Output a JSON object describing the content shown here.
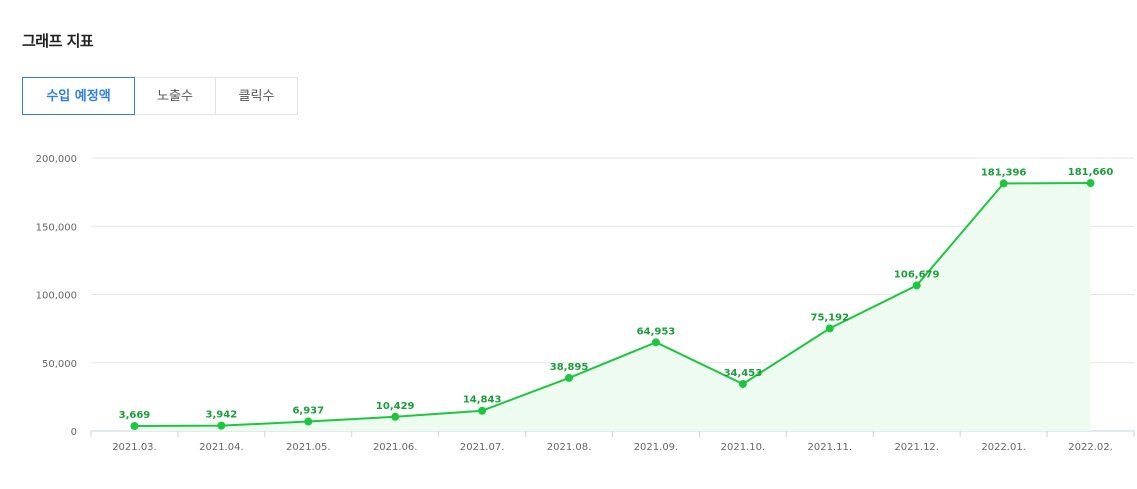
{
  "section": {
    "title": "그래프 지표"
  },
  "tabs": [
    {
      "label": "수입 예정액",
      "active": true
    },
    {
      "label": "노출수",
      "active": false
    },
    {
      "label": "클릭수",
      "active": false
    }
  ],
  "colors": {
    "accent": "#2e7fe0",
    "line": "#1ec640",
    "area": "#eefbf0",
    "label": "#1a9e3a",
    "grid": "#e6e6e6"
  },
  "chart_data": {
    "type": "area",
    "title": "",
    "xlabel": "",
    "ylabel": "",
    "ylim": [
      0,
      200000
    ],
    "yticks": [
      0,
      50000,
      100000,
      150000,
      200000
    ],
    "ytick_labels": [
      "0",
      "50,000",
      "100,000",
      "150,000",
      "200,000"
    ],
    "grid": true,
    "categories": [
      "2021.03.",
      "2021.04.",
      "2021.05.",
      "2021.06.",
      "2021.07.",
      "2021.08.",
      "2021.09.",
      "2021.10.",
      "2021.11.",
      "2021.12.",
      "2022.01.",
      "2022.02."
    ],
    "series": [
      {
        "values": [
          3669,
          3942,
          6937,
          10429,
          14843,
          38895,
          64953,
          34453,
          75192,
          106679,
          181396,
          181660
        ],
        "labels": [
          "3,669",
          "3,942",
          "6,937",
          "10,429",
          "14,843",
          "38,895",
          "64,953",
          "34,453",
          "75,192",
          "106,679",
          "181,396",
          "181,660"
        ]
      }
    ]
  }
}
